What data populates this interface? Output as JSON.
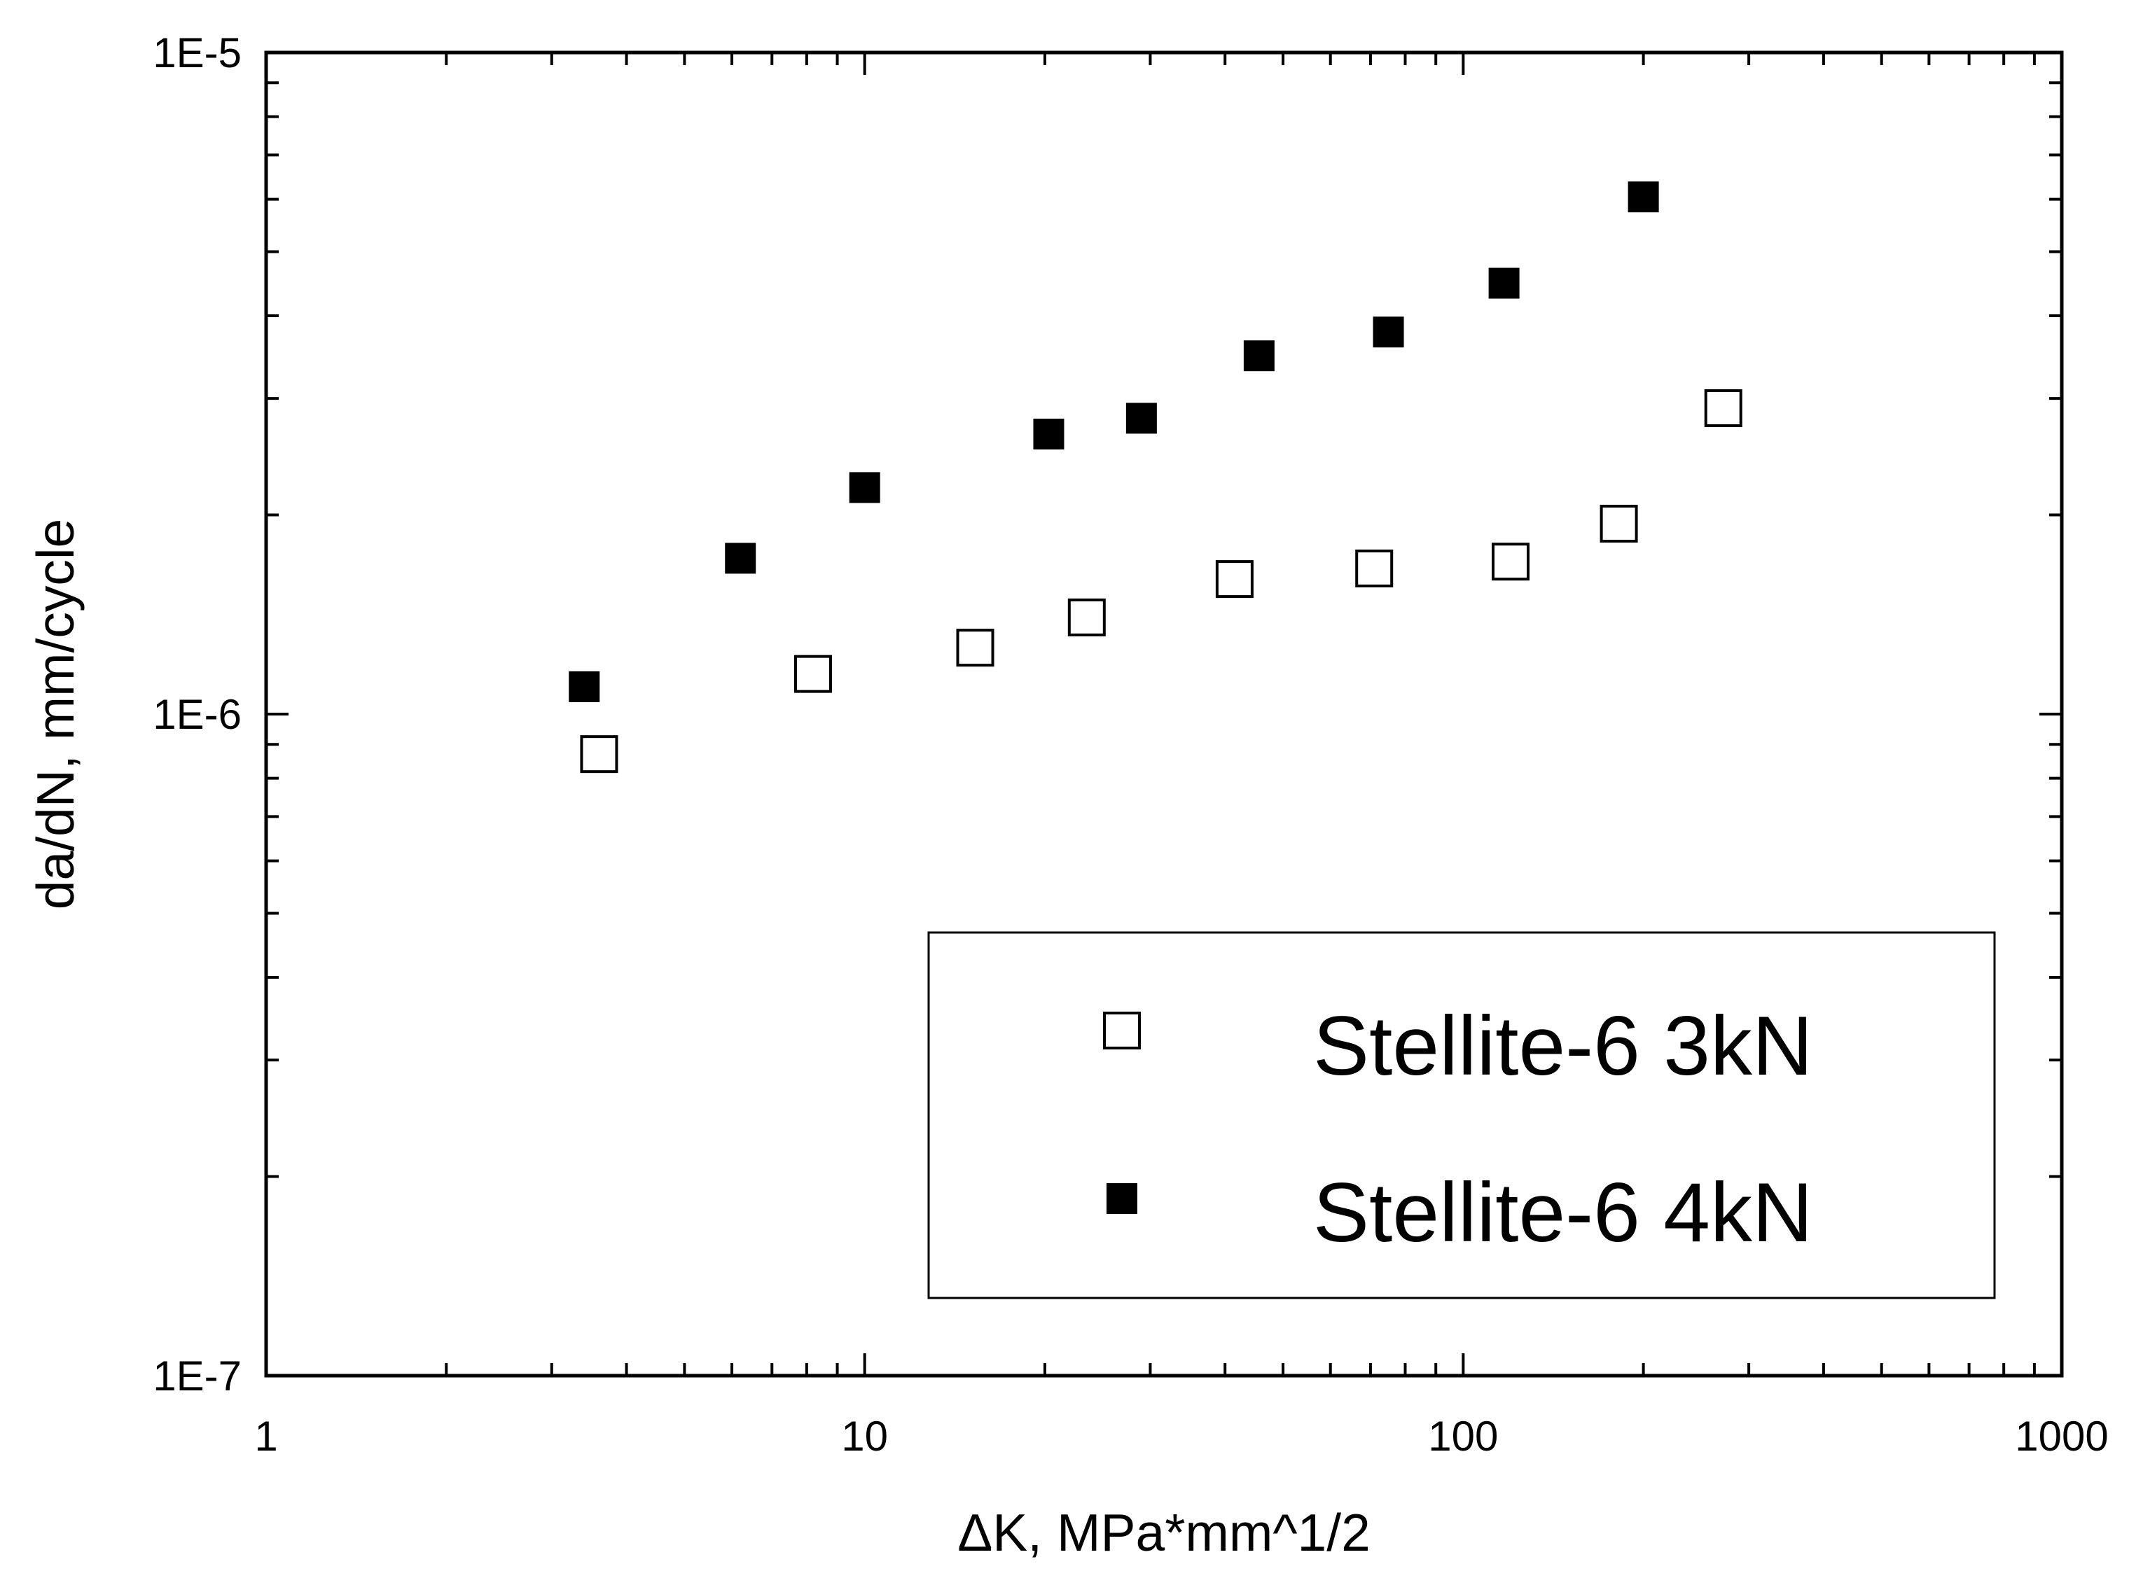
{
  "chart_data": {
    "type": "scatter",
    "title": "",
    "xlabel": "ΔK, MPa*mm^1/2",
    "ylabel": "da/dN, mm/cycle",
    "x_scale": "log",
    "y_scale": "log",
    "xlim": [
      1,
      1000
    ],
    "ylim": [
      1e-07,
      1e-05
    ],
    "x_ticks": [
      {
        "value": 1,
        "label": "1"
      },
      {
        "value": 10,
        "label": "10"
      },
      {
        "value": 100,
        "label": "100"
      },
      {
        "value": 1000,
        "label": "1000"
      }
    ],
    "y_ticks": [
      {
        "value": 1e-07,
        "label": "1E-7"
      },
      {
        "value": 1e-06,
        "label": "1E-6"
      },
      {
        "value": 1e-05,
        "label": "1E-5"
      }
    ],
    "grid": false,
    "legend_position": "bottom-right",
    "series": [
      {
        "name": "Stellite-6 3kN",
        "marker": "open-square",
        "color": "#000000",
        "points": [
          {
            "x": 3.6,
            "y": 8.7e-07
          },
          {
            "x": 8.2,
            "y": 1.15e-06
          },
          {
            "x": 15.3,
            "y": 1.26e-06
          },
          {
            "x": 23.5,
            "y": 1.4e-06
          },
          {
            "x": 41.5,
            "y": 1.6e-06
          },
          {
            "x": 71.0,
            "y": 1.66e-06
          },
          {
            "x": 120.0,
            "y": 1.7e-06
          },
          {
            "x": 182.0,
            "y": 1.94e-06
          },
          {
            "x": 272.0,
            "y": 2.9e-06
          }
        ]
      },
      {
        "name": "Stellite-6 4kN",
        "marker": "filled-square",
        "color": "#000000",
        "points": [
          {
            "x": 3.4,
            "y": 1.1e-06
          },
          {
            "x": 6.2,
            "y": 1.72e-06
          },
          {
            "x": 10.0,
            "y": 2.2e-06
          },
          {
            "x": 20.3,
            "y": 2.65e-06
          },
          {
            "x": 29.0,
            "y": 2.8e-06
          },
          {
            "x": 45.6,
            "y": 3.48e-06
          },
          {
            "x": 75.0,
            "y": 3.78e-06
          },
          {
            "x": 117.0,
            "y": 4.48e-06
          },
          {
            "x": 200.0,
            "y": 6.05e-06
          }
        ]
      }
    ]
  }
}
